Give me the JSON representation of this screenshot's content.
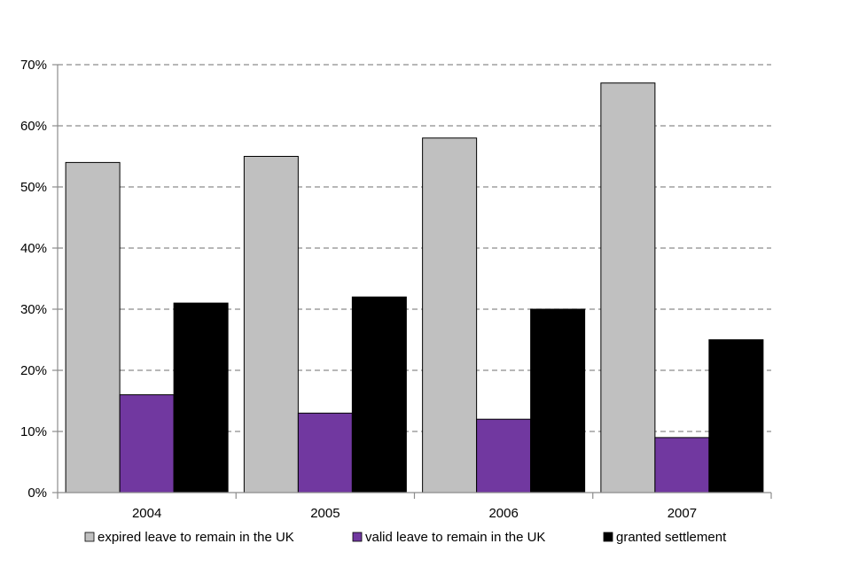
{
  "chart_data": {
    "type": "bar",
    "title": "",
    "xlabel": "",
    "ylabel": "",
    "categories": [
      "2004",
      "2005",
      "2006",
      "2007"
    ],
    "series": [
      {
        "name": "expired leave to remain in the UK",
        "values": [
          54,
          55,
          58,
          67
        ],
        "color": "#c0c0c0"
      },
      {
        "name": "valid leave to remain in the UK",
        "values": [
          16,
          13,
          12,
          9
        ],
        "color": "#7138a0"
      },
      {
        "name": "granted settlement",
        "values": [
          31,
          32,
          30,
          25
        ],
        "color": "#000000"
      }
    ],
    "ylim": [
      0,
      70
    ],
    "yticks": [
      0,
      10,
      20,
      30,
      40,
      50,
      60,
      70
    ],
    "ytick_labels": [
      "0%",
      "10%",
      "20%",
      "30%",
      "40%",
      "50%",
      "60%",
      "70%"
    ],
    "grid": "horizontal dashed",
    "legend_position": "bottom"
  }
}
